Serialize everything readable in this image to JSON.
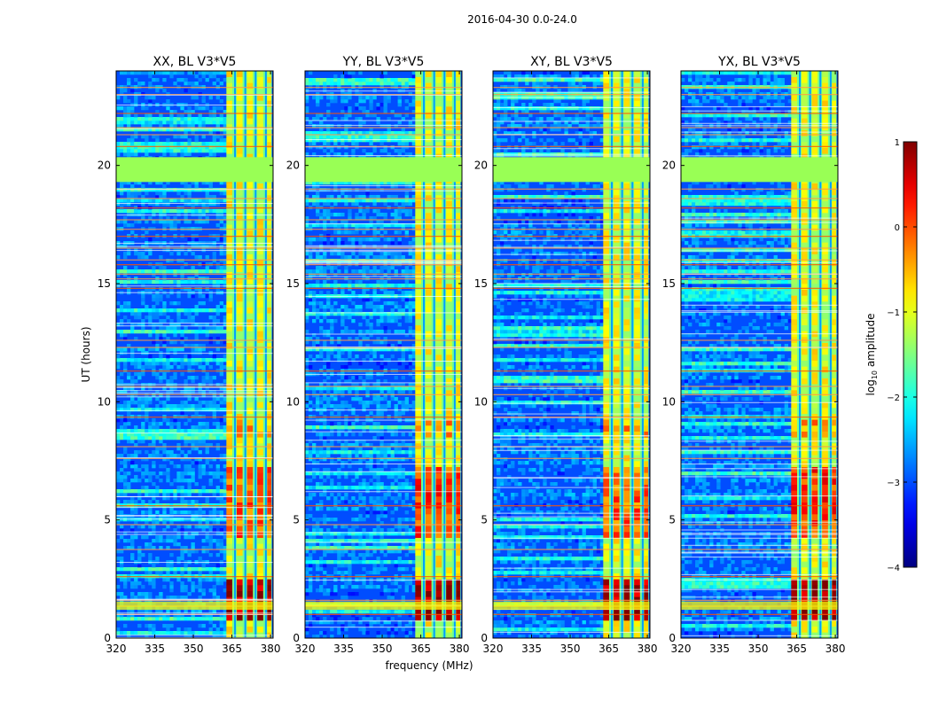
{
  "figure": {
    "suptitle": "2016-04-30 0.0-24.0"
  },
  "chart_data": {
    "type": "heatmap",
    "xlabel": "frequency (MHz)",
    "ylabel": "UT (hours)",
    "xlim": [
      320,
      381
    ],
    "ylim": [
      0,
      24
    ],
    "xticks": [
      320,
      335,
      350,
      365,
      380
    ],
    "yticks": [
      0,
      5,
      10,
      15,
      20
    ],
    "colorbar": {
      "label": "log10 amplitude",
      "label_main": "log",
      "label_sub": "10",
      "label_tail": " amplitude",
      "range": [
        -4,
        1
      ],
      "ticks": [
        1,
        0,
        -1,
        -2,
        -3,
        -4
      ],
      "tick_labels": [
        "1",
        "0",
        "−1",
        "−2",
        "−3",
        "−4"
      ],
      "colormap": "jet"
    },
    "flagged_band": {
      "t_start": 19.3,
      "t_end": 20.35,
      "value": -1.0,
      "color": "#99ff55"
    },
    "bright_channels_mhz": [
      364,
      368,
      372,
      376,
      379.5
    ],
    "panels": [
      {
        "title": "XX, BL V3*V5",
        "strong_channels": false,
        "seed": 11
      },
      {
        "title": "YY, BL V3*V5",
        "strong_channels": true,
        "seed": 23
      },
      {
        "title": "XY, BL V3*V5",
        "strong_channels": false,
        "seed": 37
      },
      {
        "title": "YX, BL V3*V5",
        "strong_channels": true,
        "seed": 53
      }
    ]
  }
}
